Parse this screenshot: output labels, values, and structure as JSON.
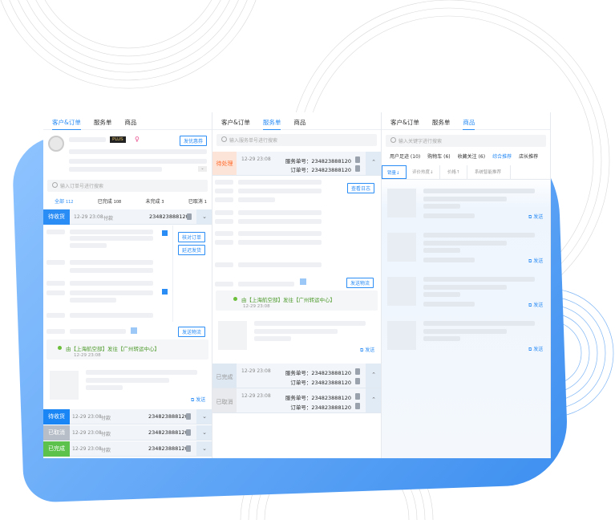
{
  "colors": {
    "accent": "#2a8cf5",
    "pending": "#2a8cf5",
    "cancelled": "#b7bec7",
    "done": "#5cc24c",
    "processing": "#ff7a3d"
  },
  "left": {
    "tabs": [
      "客户&订单",
      "服务单",
      "商品"
    ],
    "badge": "PLUS",
    "follow_btn": "发优惠券",
    "search_placeholder": "输入订单号进行搜索",
    "filters": [
      {
        "label": "全部",
        "count": "112"
      },
      {
        "label": "已完成",
        "count": "108"
      },
      {
        "label": "未完成",
        "count": "3"
      },
      {
        "label": "已取消",
        "count": "1"
      }
    ],
    "order": {
      "status": "待收货",
      "time": "12-29 23:08",
      "pay": "付款",
      "no": "234823888120"
    },
    "btn_check": "核对订单",
    "btn_delay": "延迟发货",
    "btn_logistics": "发送物流",
    "logistics": {
      "text": "由【上海航空部】发往【广州转运中心】",
      "time": "12-29 23:08"
    },
    "send": "发送",
    "orders": [
      {
        "status": "待收货",
        "time": "12-29 23:08",
        "pay": "付款",
        "no": "234823888120"
      },
      {
        "status": "已取消",
        "time": "12-29 23:08",
        "pay": "付款",
        "no": "234823888120"
      },
      {
        "status": "已完成",
        "time": "12-29 23:08",
        "pay": "付款",
        "no": "234823888120"
      }
    ]
  },
  "middle": {
    "tabs": [
      "客户&订单",
      "服务单",
      "商品"
    ],
    "search_placeholder": "输入服务单号进行搜索",
    "svc_label": "服务单号：",
    "order_label": "订单号：",
    "items": [
      {
        "status": "待处理",
        "time": "12-29 23:08",
        "svc": "234823888120",
        "order": "234823888120"
      },
      {
        "status": "已完成",
        "time": "12-29 23:08",
        "svc": "234823888120",
        "order": "234823888120"
      },
      {
        "status": "已取消",
        "time": "12-29 23:08",
        "svc": "234823888120",
        "order": "234823888120"
      }
    ],
    "btn_log": "查看日志",
    "btn_logistics": "发送物流",
    "logistics": {
      "text": "由【上海航空部】发往【广州转运中心】",
      "time": "12-29 23:08"
    },
    "send": "发送"
  },
  "right": {
    "tabs": [
      "客户&订单",
      "服务单",
      "商品"
    ],
    "search_placeholder": "输入关键字进行搜索",
    "cats": [
      "用户足迹 (10)",
      "购物车 (6)",
      "收藏关注 (6)",
      "综合推荐",
      "店长推荐"
    ],
    "sorts": [
      "销量↓",
      "评价热度↓",
      "价格↑",
      "系统智能推荐"
    ],
    "send": "发送"
  }
}
